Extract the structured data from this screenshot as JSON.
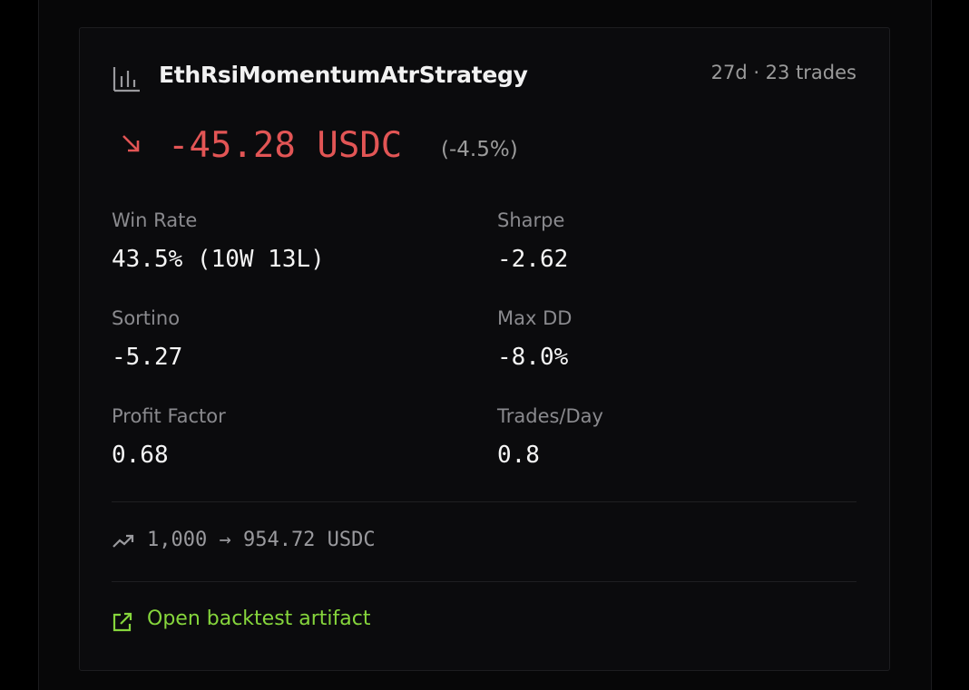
{
  "card": {
    "title": "EthRsiMomentumAtrStrategy",
    "meta": "27d · 23 trades",
    "pnl": "-45.28 USDC",
    "pnl_percent": "(-4.5%)",
    "metrics": [
      {
        "label": "Win Rate",
        "value": "43.5% (10W 13L)"
      },
      {
        "label": "Sharpe",
        "value": "-2.62"
      },
      {
        "label": "Sortino",
        "value": "-5.27"
      },
      {
        "label": "Max DD",
        "value": "-8.0%"
      },
      {
        "label": "Profit Factor",
        "value": "0.68"
      },
      {
        "label": "Trades/Day",
        "value": "0.8"
      }
    ],
    "capital": "1,000 → 954.72 USDC",
    "link": "Open backtest artifact"
  }
}
